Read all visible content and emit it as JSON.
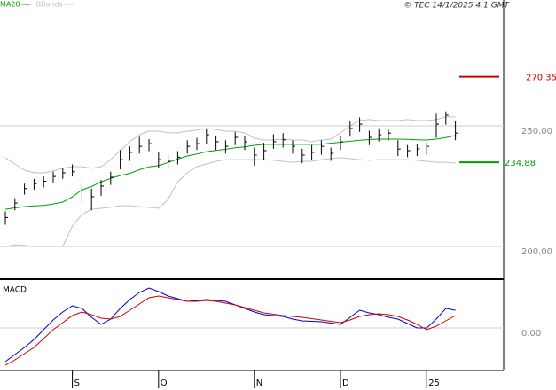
{
  "chart_data": [
    {
      "type": "ohlc",
      "source": "© TEC 14/1/2025 4:1 GMT",
      "categories": [
        null,
        null,
        null,
        null,
        null,
        null,
        null,
        "S",
        null,
        null,
        null,
        null,
        null,
        null,
        null,
        null,
        "O",
        null,
        null,
        null,
        null,
        null,
        null,
        null,
        null,
        null,
        "N",
        null,
        null,
        null,
        null,
        null,
        null,
        null,
        null,
        "D",
        null,
        null,
        null,
        null,
        null,
        null,
        null,
        null,
        "25",
        null,
        null,
        null
      ],
      "bars": {
        "color": "#000000",
        "high": [
          214.5,
          220,
          226,
          228,
          229,
          231,
          232.5,
          234,
          226,
          224,
          227.5,
          231,
          240,
          241.5,
          245.5,
          244.5,
          239,
          238,
          239.5,
          244,
          245,
          248.5,
          246,
          244,
          247.5,
          246,
          241,
          243,
          246.5,
          247,
          244,
          240.5,
          242,
          244,
          241,
          246,
          252,
          253.5,
          248,
          249,
          248.5,
          244,
          242,
          242.5,
          243,
          255,
          256,
          252
        ],
        "low": [
          209,
          215,
          221.5,
          223.5,
          224.5,
          226.5,
          228,
          229,
          218,
          215,
          221,
          225.5,
          232,
          235.5,
          238.5,
          239.5,
          232.5,
          232,
          234,
          238.5,
          240,
          242.5,
          240,
          238.5,
          242,
          240,
          233.5,
          236,
          240.5,
          241,
          238.5,
          234.5,
          236,
          238,
          235.5,
          240,
          245.5,
          247.5,
          242,
          243.5,
          244,
          237.5,
          237,
          237.5,
          238,
          245,
          250.5,
          244
        ],
        "close": [
          212,
          218,
          224,
          226,
          227,
          229,
          230.5,
          231,
          223,
          220.6,
          225,
          228.7,
          236,
          239,
          241.5,
          242.6,
          236,
          235.3,
          237,
          241.5,
          242.6,
          246.3,
          243.4,
          241.5,
          245.2,
          243.4,
          237.9,
          239.7,
          243.4,
          244.2,
          241.5,
          237.9,
          239,
          241.5,
          238.6,
          243.4,
          248.9,
          250.7,
          245.2,
          246.3,
          247,
          240.4,
          239.7,
          240.4,
          241.5,
          250.7,
          254.4,
          247
        ]
      },
      "series": [
        {
          "name": "MA20",
          "color": "#00a000",
          "values": [
            215.4,
            216,
            216.5,
            216.8,
            217,
            217.6,
            218.4,
            220.5,
            223.5,
            224.8,
            226.8,
            228.2,
            229.4,
            230.3,
            231.8,
            233,
            233.5,
            234.8,
            236.2,
            237.5,
            238.3,
            239.3,
            239.8,
            240.3,
            240.9,
            241.3,
            241.9,
            242.3,
            242.3,
            242.3,
            242.3,
            242.3,
            242.3,
            242.4,
            242.8,
            243.2,
            243.6,
            244,
            244.3,
            244.5,
            244.5,
            244.5,
            244.4,
            244.2,
            244.1,
            244.5,
            245.1,
            246
          ]
        },
        {
          "name": "BBands",
          "color": "#c0c0c0",
          "upper": [
            236.8,
            234.2,
            231.6,
            230.5,
            230.5,
            231.3,
            232.4,
            233.1,
            233.1,
            232.4,
            233.1,
            236,
            239.7,
            243.4,
            246.3,
            247.8,
            247.8,
            247.1,
            247.1,
            247.8,
            248.2,
            248.9,
            248.5,
            247.8,
            247.8,
            247.1,
            244.9,
            244.1,
            244.1,
            244.5,
            244.1,
            244.1,
            243.4,
            244.1,
            244.5,
            247.1,
            250,
            252.2,
            252.6,
            252.2,
            252.2,
            252.2,
            252.6,
            252.2,
            252.2,
            252.6,
            253.7,
            253.7
          ],
          "lower": [
            200,
            200.7,
            200.4,
            200,
            200,
            200,
            200,
            208.5,
            213.2,
            215.4,
            215.8,
            216.2,
            216.9,
            216.9,
            216.5,
            216.2,
            215.8,
            219.5,
            226.8,
            230.5,
            233.1,
            234.2,
            235.3,
            236,
            236,
            236,
            236,
            236,
            235.7,
            235.3,
            234.9,
            235.3,
            235.3,
            236,
            236.4,
            236.8,
            236.4,
            236,
            235.7,
            236,
            236,
            236,
            236,
            235.7,
            235.3,
            234.9,
            234.9,
            234.6
          ]
        }
      ],
      "levels": [
        {
          "value": 270.35,
          "color": "#cc0000"
        },
        {
          "value": 234.88,
          "color": "#00a000"
        }
      ],
      "ylim": [
        186.4,
        302.2
      ],
      "yticks": [
        {
          "value": 200,
          "label": "200.00"
        },
        {
          "value": 250,
          "label": "250.00"
        }
      ],
      "grid": true
    },
    {
      "type": "line",
      "title": "MACD",
      "series": [
        {
          "color": "#0000cc",
          "values": [
            -3.8,
            -3.0,
            -2.2,
            -1.3,
            -0.2,
            0.9,
            1.8,
            2.5,
            2.2,
            1.2,
            0.4,
            1.0,
            2.2,
            3.2,
            4.0,
            4.5,
            4.1,
            3.6,
            3.3,
            3.0,
            3.1,
            3.2,
            3.1,
            3.0,
            2.6,
            2.2,
            1.8,
            1.5,
            1.4,
            1.3,
            1.0,
            0.8,
            0.75,
            0.7,
            0.55,
            0.4,
            1.2,
            2.0,
            1.7,
            1.5,
            1.2,
            1.0,
            0.5,
            0,
            0,
            1.0,
            2.2,
            2.0
          ]
        },
        {
          "color": "#cc0000",
          "values": [
            -4.2,
            -3.6,
            -2.9,
            -2.2,
            -1.2,
            -0.2,
            0.6,
            1.4,
            1.8,
            1.5,
            1.1,
            1.0,
            1.3,
            2.0,
            2.7,
            3.4,
            3.6,
            3.4,
            3.2,
            3.0,
            3.0,
            3.1,
            3.0,
            2.8,
            2.6,
            2.3,
            2.0,
            1.7,
            1.55,
            1.4,
            1.3,
            1.2,
            1.05,
            0.9,
            0.75,
            0.6,
            0.9,
            1.3,
            1.5,
            1.6,
            1.5,
            1.3,
            0.9,
            0.4,
            -0.2,
            0.2,
            0.8,
            1.4
          ]
        }
      ],
      "ylim": [
        -4.8,
        5.2
      ],
      "yticks": [
        {
          "value": 0,
          "label": "0.00"
        }
      ],
      "grid": true
    }
  ]
}
